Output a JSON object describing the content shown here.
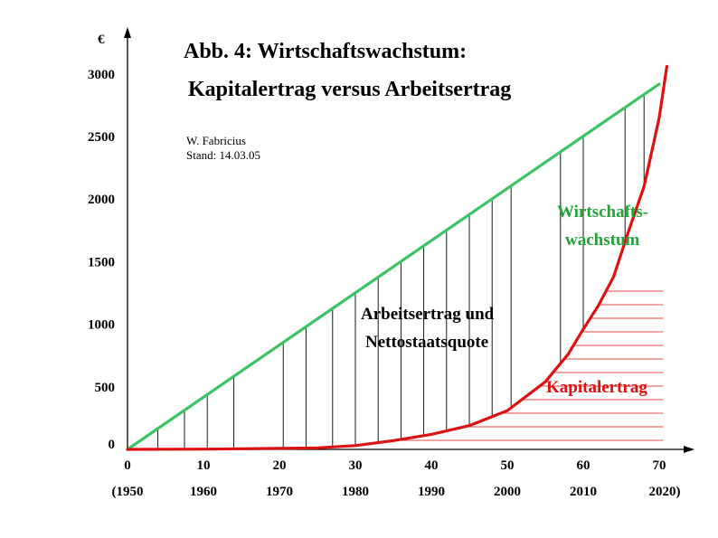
{
  "chart_data": {
    "type": "line",
    "title": "Abb. 4: Wirtschaftswachstum:",
    "subtitle": "Kapitalertrag versus Arbeitsertrag",
    "author": "W. Fabricius",
    "date": "Stand: 14.03.05",
    "ylabel": "€",
    "ylim": [
      0,
      3200
    ],
    "xlim": [
      0,
      72
    ],
    "y_ticks": [
      0,
      500,
      1000,
      1500,
      2000,
      2500,
      3000
    ],
    "x_ticks": [
      0,
      10,
      20,
      30,
      40,
      50,
      60,
      70
    ],
    "x_year_labels": [
      "(1950",
      "1960",
      "1970",
      "1980",
      "1990",
      "2000",
      "2010",
      "2020)"
    ],
    "grid": false,
    "series": [
      {
        "name": "Wirtschaftswachstum",
        "color": "#3cc464",
        "x": [
          0,
          70
        ],
        "values": [
          0,
          2920
        ]
      },
      {
        "name": "Kapitalertrag",
        "color": "#dd1111",
        "x": [
          0,
          10,
          20,
          25,
          30,
          35,
          40,
          45,
          50,
          55,
          58,
          60,
          62,
          64,
          66,
          68,
          70,
          71
        ],
        "values": [
          0,
          2,
          8,
          12,
          30,
          70,
          120,
          190,
          310,
          540,
          760,
          960,
          1150,
          1380,
          1750,
          2100,
          2650,
          3060
        ]
      }
    ],
    "hatch_lines_x": [
      4,
      7.5,
      10.5,
      14,
      20.5,
      23.5,
      27,
      30,
      33,
      36,
      39,
      42,
      45,
      48,
      50.5,
      57,
      60,
      65.5,
      68
    ],
    "red_hatch_levels": [
      10,
      25,
      40,
      55,
      70,
      85,
      100,
      115,
      130,
      145,
      160,
      175
    ],
    "annotations": {
      "growth_label_1": "Wirtschafts-",
      "growth_label_2": "wachstum",
      "labor_label_1": "Arbeitsertrag und",
      "labor_label_2": "Nettostaatsquote",
      "capital_label": "Kapitalertrag"
    }
  }
}
